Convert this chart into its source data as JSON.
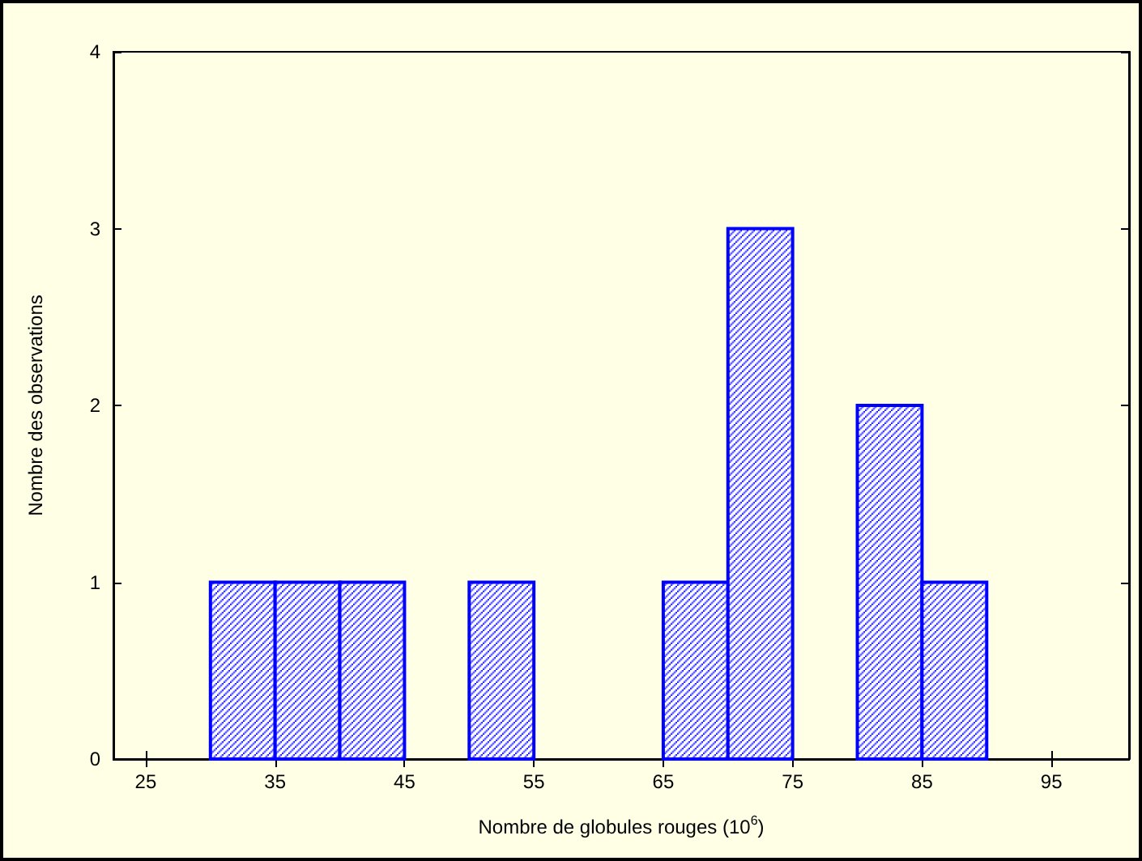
{
  "chart_data": {
    "type": "histogram",
    "xlabel": "Nombre de globules rouges (10$^{6}$)",
    "ylabel": "Nombre des observations",
    "bins": [
      30,
      35,
      40,
      45,
      50,
      55,
      60,
      65,
      70,
      75,
      80,
      85,
      90
    ],
    "values": [
      1,
      1,
      1,
      0,
      1,
      0,
      0,
      1,
      3,
      0,
      2,
      1
    ],
    "color": "#0000ff",
    "xlim": [
      22.5,
      101
    ],
    "xticks": [
      25,
      35,
      45,
      55,
      65,
      75,
      85,
      95
    ],
    "ylim": [
      0,
      4
    ],
    "yticks": [
      0,
      1,
      2,
      3,
      4
    ],
    "grid": false
  }
}
